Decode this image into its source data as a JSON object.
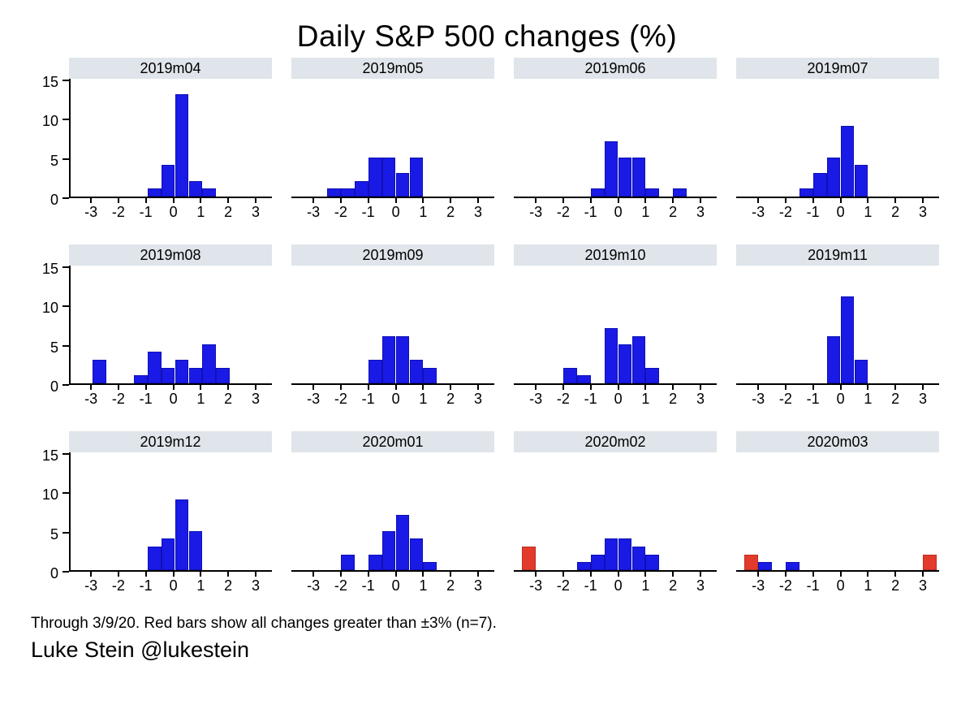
{
  "title": "Daily S&P 500 changes (%)",
  "footer": {
    "note": "Through 3/9/20. Red bars show all changes greater than ±3% (n=7).",
    "credit": "Luke Stein @lukestein"
  },
  "colors": {
    "blue": "#1a1ae6",
    "blue_border": "#1010b4",
    "red": "#e33b2b",
    "red_border": "#bb2d1f",
    "panel_header_bg": "#dfe5ea",
    "axis": "#000000"
  },
  "chart_data": {
    "type": "bar",
    "subtype": "histogram-small-multiples",
    "title": "Daily S&P 500 changes (%)",
    "xlabel": "",
    "ylabel": "",
    "bin_width": 0.5,
    "x_ticks": [
      -3,
      -2,
      -1,
      0,
      1,
      2,
      3
    ],
    "y_ticks": [
      0,
      5,
      10,
      15
    ],
    "xlim": [
      -3.8,
      3.6
    ],
    "ylim": [
      0,
      15
    ],
    "grid": false,
    "legend": "none",
    "panels": [
      {
        "label": "2019m04",
        "bars": [
          {
            "x": -1.0,
            "h": 1
          },
          {
            "x": -0.5,
            "h": 4
          },
          {
            "x": 0.0,
            "h": 13
          },
          {
            "x": 0.5,
            "h": 2
          },
          {
            "x": 1.0,
            "h": 1
          }
        ]
      },
      {
        "label": "2019m05",
        "bars": [
          {
            "x": -2.5,
            "h": 1
          },
          {
            "x": -2.0,
            "h": 1
          },
          {
            "x": -1.5,
            "h": 2
          },
          {
            "x": -1.0,
            "h": 5
          },
          {
            "x": -0.5,
            "h": 5
          },
          {
            "x": 0.0,
            "h": 3
          },
          {
            "x": 0.5,
            "h": 5
          }
        ]
      },
      {
        "label": "2019m06",
        "bars": [
          {
            "x": -1.0,
            "h": 1
          },
          {
            "x": -0.5,
            "h": 7
          },
          {
            "x": 0.0,
            "h": 5
          },
          {
            "x": 0.5,
            "h": 5
          },
          {
            "x": 1.0,
            "h": 1
          },
          {
            "x": 2.0,
            "h": 1
          }
        ]
      },
      {
        "label": "2019m07",
        "bars": [
          {
            "x": -1.5,
            "h": 1
          },
          {
            "x": -1.0,
            "h": 3
          },
          {
            "x": -0.5,
            "h": 5
          },
          {
            "x": 0.0,
            "h": 9
          },
          {
            "x": 0.5,
            "h": 4
          }
        ]
      },
      {
        "label": "2019m08",
        "bars": [
          {
            "x": -3.0,
            "h": 3
          },
          {
            "x": -1.5,
            "h": 1
          },
          {
            "x": -1.0,
            "h": 4
          },
          {
            "x": -0.5,
            "h": 2
          },
          {
            "x": 0.0,
            "h": 3
          },
          {
            "x": 0.5,
            "h": 2
          },
          {
            "x": 1.0,
            "h": 5
          },
          {
            "x": 1.5,
            "h": 2
          }
        ]
      },
      {
        "label": "2019m09",
        "bars": [
          {
            "x": -1.0,
            "h": 3
          },
          {
            "x": -0.5,
            "h": 6
          },
          {
            "x": 0.0,
            "h": 6
          },
          {
            "x": 0.5,
            "h": 3
          },
          {
            "x": 1.0,
            "h": 2
          }
        ]
      },
      {
        "label": "2019m10",
        "bars": [
          {
            "x": -2.0,
            "h": 2
          },
          {
            "x": -1.5,
            "h": 1
          },
          {
            "x": -0.5,
            "h": 7
          },
          {
            "x": 0.0,
            "h": 5
          },
          {
            "x": 0.5,
            "h": 6
          },
          {
            "x": 1.0,
            "h": 2
          }
        ]
      },
      {
        "label": "2019m11",
        "bars": [
          {
            "x": -0.5,
            "h": 6
          },
          {
            "x": 0.0,
            "h": 11
          },
          {
            "x": 0.5,
            "h": 3
          }
        ]
      },
      {
        "label": "2019m12",
        "bars": [
          {
            "x": -1.0,
            "h": 3
          },
          {
            "x": -0.5,
            "h": 4
          },
          {
            "x": 0.0,
            "h": 9
          },
          {
            "x": 0.5,
            "h": 5
          }
        ]
      },
      {
        "label": "2020m01",
        "bars": [
          {
            "x": -2.0,
            "h": 2
          },
          {
            "x": -1.0,
            "h": 2
          },
          {
            "x": -0.5,
            "h": 5
          },
          {
            "x": 0.0,
            "h": 7
          },
          {
            "x": 0.5,
            "h": 4
          },
          {
            "x": 1.0,
            "h": 1
          }
        ]
      },
      {
        "label": "2020m02",
        "bars": [
          {
            "x": -3.5,
            "h": 3,
            "c": "red"
          },
          {
            "x": -1.5,
            "h": 1
          },
          {
            "x": -1.0,
            "h": 2
          },
          {
            "x": -0.5,
            "h": 4
          },
          {
            "x": 0.0,
            "h": 4
          },
          {
            "x": 0.5,
            "h": 3
          },
          {
            "x": 1.0,
            "h": 2
          }
        ]
      },
      {
        "label": "2020m03",
        "bars": [
          {
            "x": -3.5,
            "h": 2,
            "c": "red"
          },
          {
            "x": -3.0,
            "h": 1
          },
          {
            "x": -2.0,
            "h": 1
          },
          {
            "x": 3.0,
            "h": 2,
            "c": "red"
          }
        ]
      }
    ]
  }
}
